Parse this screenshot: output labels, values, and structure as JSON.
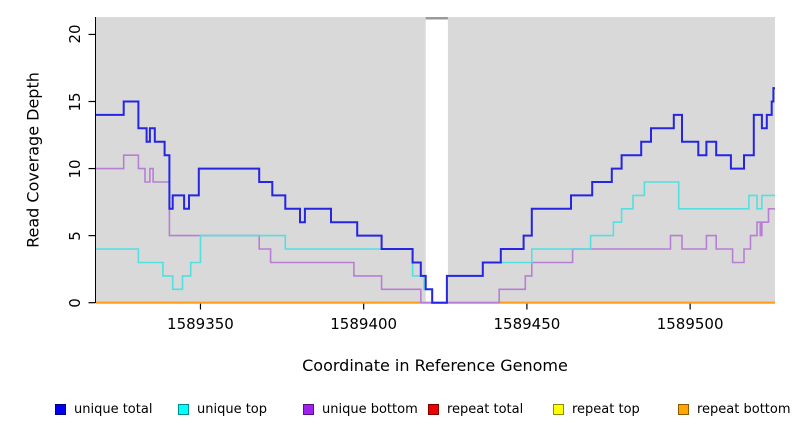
{
  "chart_data": {
    "type": "line",
    "step": true,
    "title": "",
    "xlabel": "Coordinate in Reference Genome",
    "ylabel": "Read Coverage Depth",
    "xlim": [
      1589318,
      1589526
    ],
    "ylim": [
      0,
      21.3
    ],
    "x_ticks": [
      1589350,
      1589400,
      1589450,
      1589500
    ],
    "y_ticks": [
      0,
      5,
      10,
      15,
      20
    ],
    "grid": false,
    "panel_bg": "#d9d9d9",
    "gap_region": {
      "x_start": 1589419,
      "x_end": 1589425.8,
      "color": "#ffffff",
      "cap_color": "#9a9a9a"
    },
    "legend_position": "bottom",
    "series": [
      {
        "name": "repeat total",
        "color": "#e01010",
        "width": 1.6,
        "steps": [
          [
            1589318,
            0
          ]
        ]
      },
      {
        "name": "repeat top",
        "color": "#f2ee2a",
        "width": 1.6,
        "steps": [
          [
            1589318,
            0
          ]
        ]
      },
      {
        "name": "repeat bottom",
        "color": "#ff9d1c",
        "width": 2,
        "steps": [
          [
            1589318,
            0
          ]
        ]
      },
      {
        "name": "unique bottom",
        "color": "#b77fd4",
        "width": 1.6,
        "steps": [
          [
            1589318,
            10
          ],
          [
            1589326.5,
            11
          ],
          [
            1589331,
            10
          ],
          [
            1589333,
            9
          ],
          [
            1589334.5,
            10
          ],
          [
            1589335.5,
            9
          ],
          [
            1589340.5,
            5
          ],
          [
            1589368,
            4
          ],
          [
            1589371.5,
            3
          ],
          [
            1589397,
            2
          ],
          [
            1589405.5,
            1
          ],
          [
            1589417.5,
            0
          ],
          [
            1589441.5,
            1
          ],
          [
            1589449.5,
            2
          ],
          [
            1589451.5,
            3
          ],
          [
            1589464,
            4
          ],
          [
            1589494,
            5
          ],
          [
            1589497.5,
            4
          ],
          [
            1589505,
            5
          ],
          [
            1589508,
            4
          ],
          [
            1589513,
            3
          ],
          [
            1589516.5,
            4
          ],
          [
            1589518.5,
            5
          ],
          [
            1589520.5,
            6
          ],
          [
            1589521.5,
            5
          ],
          [
            1589522,
            6
          ],
          [
            1589524,
            7
          ]
        ]
      },
      {
        "name": "unique top",
        "color": "#52e0e0",
        "width": 1.6,
        "steps": [
          [
            1589318,
            4
          ],
          [
            1589331,
            3
          ],
          [
            1589338.5,
            2
          ],
          [
            1589341.5,
            1
          ],
          [
            1589344.5,
            2
          ],
          [
            1589347,
            3
          ],
          [
            1589350,
            5
          ],
          [
            1589376,
            4
          ],
          [
            1589415,
            2
          ],
          [
            1589418.5,
            1
          ],
          [
            1589421,
            0
          ],
          [
            1589425.5,
            2
          ],
          [
            1589436.5,
            3
          ],
          [
            1589451.5,
            4
          ],
          [
            1589469.5,
            5
          ],
          [
            1589476.5,
            6
          ],
          [
            1589479,
            7
          ],
          [
            1589482.5,
            8
          ],
          [
            1589486,
            9
          ],
          [
            1589496.5,
            7
          ],
          [
            1589518,
            8
          ],
          [
            1589520.5,
            7
          ],
          [
            1589522,
            8
          ]
        ]
      },
      {
        "name": "unique total",
        "color": "#2525e2",
        "width": 2,
        "steps": [
          [
            1589318,
            14
          ],
          [
            1589326.5,
            15
          ],
          [
            1589331,
            13
          ],
          [
            1589333.5,
            12
          ],
          [
            1589334.5,
            13
          ],
          [
            1589336,
            12
          ],
          [
            1589339,
            11
          ],
          [
            1589340.5,
            7
          ],
          [
            1589341.5,
            8
          ],
          [
            1589345,
            7
          ],
          [
            1589346.5,
            8
          ],
          [
            1589349.5,
            10
          ],
          [
            1589368,
            9
          ],
          [
            1589372,
            8
          ],
          [
            1589376,
            7
          ],
          [
            1589380.5,
            6
          ],
          [
            1589382,
            7
          ],
          [
            1589390,
            6
          ],
          [
            1589398,
            5
          ],
          [
            1589405.5,
            4
          ],
          [
            1589415,
            3
          ],
          [
            1589417.5,
            2
          ],
          [
            1589419,
            1
          ],
          [
            1589421,
            0
          ],
          [
            1589425.5,
            2
          ],
          [
            1589436.5,
            3
          ],
          [
            1589442,
            4
          ],
          [
            1589449,
            5
          ],
          [
            1589451.5,
            7
          ],
          [
            1589463.5,
            8
          ],
          [
            1589470,
            9
          ],
          [
            1589476,
            10
          ],
          [
            1589479,
            11
          ],
          [
            1589485,
            12
          ],
          [
            1589488,
            13
          ],
          [
            1589495,
            14
          ],
          [
            1589497.5,
            12
          ],
          [
            1589502.5,
            11
          ],
          [
            1589505,
            12
          ],
          [
            1589508,
            11
          ],
          [
            1589512.5,
            10
          ],
          [
            1589516.5,
            11
          ],
          [
            1589519.5,
            14
          ],
          [
            1589522,
            13
          ],
          [
            1589523.5,
            14
          ],
          [
            1589525,
            15
          ],
          [
            1589525.5,
            16
          ]
        ]
      }
    ],
    "legend": [
      {
        "label": "unique total",
        "color": "#0000ee"
      },
      {
        "label": "unique top",
        "color": "#00ffff"
      },
      {
        "label": "unique bottom",
        "color": "#a020f0"
      },
      {
        "label": "repeat total",
        "color": "#ee0000"
      },
      {
        "label": "repeat top",
        "color": "#ffff00"
      },
      {
        "label": "repeat bottom",
        "color": "#ffa500"
      }
    ]
  }
}
